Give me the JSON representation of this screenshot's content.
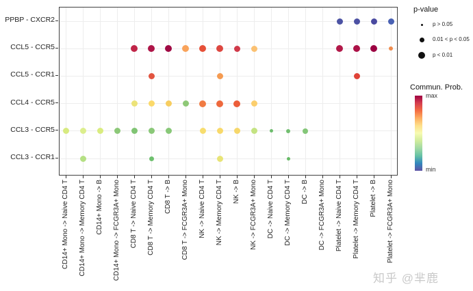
{
  "watermark": "知乎 @芈鹿",
  "legend": {
    "pvalue": {
      "title": "p-value",
      "items": [
        {
          "label": "p > 0.05",
          "size": 3
        },
        {
          "label": "0.01 < p < 0.05",
          "size": 7
        },
        {
          "label": "p < 0.01",
          "size": 10
        }
      ]
    },
    "colorbar": {
      "title": "Commun. Prob.",
      "max_label": "max",
      "min_label": "min",
      "gradient": [
        "#9e0142",
        "#d53e4f",
        "#f46d43",
        "#fdae61",
        "#fee08b",
        "#f7fbb2",
        "#d0ec9c",
        "#a1d9a4",
        "#66c2a5",
        "#3288bd",
        "#5e53a5"
      ]
    }
  },
  "chart_data": {
    "type": "scatter",
    "subtype": "bubble-dotplot",
    "title": "",
    "xlabel": "",
    "ylabel": "",
    "grid": true,
    "x_categories": [
      "CD14+ Mono -> Naive CD4 T",
      "CD14+ Mono -> Memory CD4 T",
      "CD14+ Mono -> B",
      "CD14+ Mono -> FCGR3A+ Mono",
      "CD8 T -> Naive CD4 T",
      "CD8 T -> Memory CD4 T",
      "CD8 T -> B",
      "CD8 T -> FCGR3A+ Mono",
      "NK -> Naive CD4 T",
      "NK -> Memory CD4 T",
      "NK -> B",
      "NK -> FCGR3A+ Mono",
      "DC -> Naive CD4 T",
      "DC -> Memory CD4 T",
      "DC -> B",
      "DC -> FCGR3A+ Mono",
      "Platelet -> Naive CD4 T",
      "Platelet -> Memory CD4 T",
      "Platelet -> B",
      "Platelet -> FCGR3A+ Mono"
    ],
    "y_categories": [
      "PPBP - CXCR2",
      "CCL5 - CCR5",
      "CCL5 - CCR1",
      "CCL4 - CCR5",
      "CCL3 - CCR5",
      "CCL3 - CCR1"
    ],
    "points": [
      {
        "x": 17,
        "y": 1,
        "color": "#4c53a4",
        "size": 9
      },
      {
        "x": 18,
        "y": 1,
        "color": "#4c51a3",
        "size": 9
      },
      {
        "x": 19,
        "y": 1,
        "color": "#4a4aa0",
        "size": 9
      },
      {
        "x": 20,
        "y": 1,
        "color": "#4961b3",
        "size": 9
      },
      {
        "x": 5,
        "y": 2,
        "color": "#c02548",
        "size": 10
      },
      {
        "x": 6,
        "y": 2,
        "color": "#ae1548",
        "size": 10
      },
      {
        "x": 7,
        "y": 2,
        "color": "#a00a44",
        "size": 10
      },
      {
        "x": 8,
        "y": 2,
        "color": "#f9a35b",
        "size": 10
      },
      {
        "x": 9,
        "y": 2,
        "color": "#e65038",
        "size": 10
      },
      {
        "x": 10,
        "y": 2,
        "color": "#dd4740",
        "size": 10
      },
      {
        "x": 11,
        "y": 2,
        "color": "#d03a4a",
        "size": 9
      },
      {
        "x": 12,
        "y": 2,
        "color": "#fbc172",
        "size": 9
      },
      {
        "x": 17,
        "y": 2,
        "color": "#b21949",
        "size": 10
      },
      {
        "x": 18,
        "y": 2,
        "color": "#ac1147",
        "size": 10
      },
      {
        "x": 19,
        "y": 2,
        "color": "#9b0041",
        "size": 10
      },
      {
        "x": 20,
        "y": 2,
        "color": "#ef8c4e",
        "size": 6
      },
      {
        "x": 6,
        "y": 3,
        "color": "#e25440",
        "size": 9
      },
      {
        "x": 10,
        "y": 3,
        "color": "#f59b51",
        "size": 9
      },
      {
        "x": 18,
        "y": 3,
        "color": "#e04338",
        "size": 9
      },
      {
        "x": 5,
        "y": 4,
        "color": "#ece379",
        "size": 9
      },
      {
        "x": 6,
        "y": 4,
        "color": "#fbd96a",
        "size": 9
      },
      {
        "x": 7,
        "y": 4,
        "color": "#f7cd60",
        "size": 9
      },
      {
        "x": 8,
        "y": 4,
        "color": "#8ec877",
        "size": 9
      },
      {
        "x": 9,
        "y": 4,
        "color": "#f07b43",
        "size": 10
      },
      {
        "x": 10,
        "y": 4,
        "color": "#ee693d",
        "size": 10
      },
      {
        "x": 11,
        "y": 4,
        "color": "#ec5e3a",
        "size": 10
      },
      {
        "x": 12,
        "y": 4,
        "color": "#fbce6d",
        "size": 9
      },
      {
        "x": 1,
        "y": 5,
        "color": "#d7ea80",
        "size": 9
      },
      {
        "x": 2,
        "y": 5,
        "color": "#dcee8d",
        "size": 9
      },
      {
        "x": 3,
        "y": 5,
        "color": "#d9ec7f",
        "size": 9
      },
      {
        "x": 4,
        "y": 5,
        "color": "#8cc878",
        "size": 9
      },
      {
        "x": 5,
        "y": 5,
        "color": "#80c474",
        "size": 9
      },
      {
        "x": 6,
        "y": 5,
        "color": "#8ac878",
        "size": 9
      },
      {
        "x": 7,
        "y": 5,
        "color": "#88c878",
        "size": 9
      },
      {
        "x": 9,
        "y": 5,
        "color": "#f7dd6e",
        "size": 9
      },
      {
        "x": 10,
        "y": 5,
        "color": "#f8d96a",
        "size": 9
      },
      {
        "x": 11,
        "y": 5,
        "color": "#f6d76b",
        "size": 9
      },
      {
        "x": 12,
        "y": 5,
        "color": "#c4e382",
        "size": 9
      },
      {
        "x": 13,
        "y": 5,
        "color": "#6cbc6c",
        "size": 5
      },
      {
        "x": 14,
        "y": 5,
        "color": "#72be70",
        "size": 6
      },
      {
        "x": 15,
        "y": 5,
        "color": "#84c678",
        "size": 8
      },
      {
        "x": 2,
        "y": 6,
        "color": "#b5e084",
        "size": 9
      },
      {
        "x": 6,
        "y": 6,
        "color": "#6ec06e",
        "size": 7
      },
      {
        "x": 10,
        "y": 6,
        "color": "#e8e476",
        "size": 9
      },
      {
        "x": 14,
        "y": 6,
        "color": "#66ba66",
        "size": 5
      }
    ]
  }
}
